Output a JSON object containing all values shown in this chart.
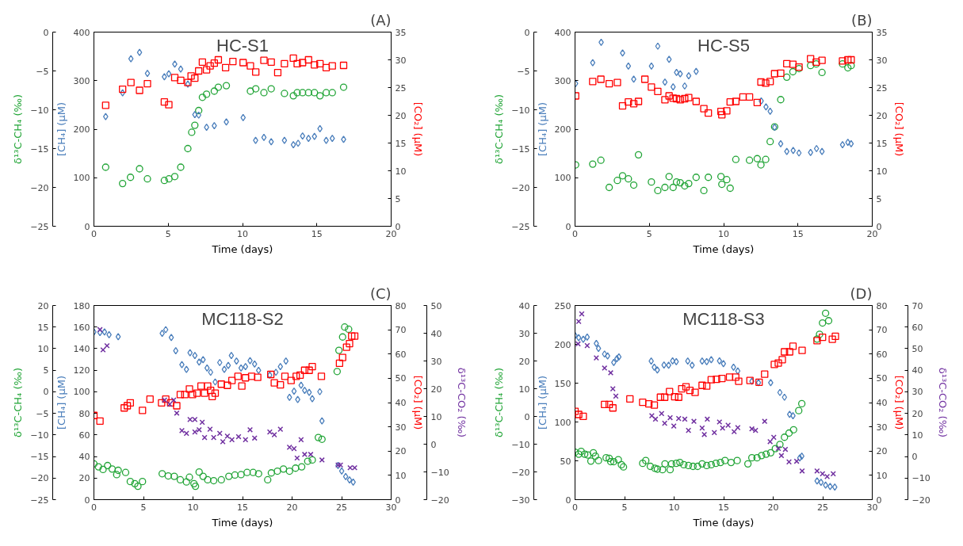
{
  "chart_data": [
    {
      "type": "scatter",
      "title": "(A)",
      "annotations": [
        "HC-S1"
      ],
      "xlabel": "Time (days)",
      "ylabel": "[CH₄] (μM)",
      "y2label": "[CO₂] (μM)",
      "y3label": "δ¹³C-CH₄ (‰)",
      "xlim": [
        0,
        20
      ],
      "xticks": [
        0,
        5,
        10,
        15,
        20
      ],
      "ylim": [
        0,
        400
      ],
      "yticks": [
        0,
        100,
        200,
        300,
        400
      ],
      "y2lim": [
        0,
        35
      ],
      "y2ticks": [
        0,
        5,
        10,
        15,
        20,
        25,
        30,
        35
      ],
      "y3lim": [
        -25,
        0
      ],
      "y3ticks": [
        -25,
        -20,
        -15,
        -10,
        -5,
        0
      ],
      "grid": false,
      "series": [
        {
          "axis": "y3",
          "color": "#22a537",
          "marker": "circle",
          "x": [
            0.79,
            1.93,
            2.46,
            3.07,
            3.6,
            4.74,
            5.05,
            5.44,
            5.84,
            6.32,
            6.58,
            6.79,
            7.05,
            7.3,
            7.58,
            8.1,
            8.37,
            8.91,
            10.53,
            10.89,
            11.44,
            11.93,
            12.82,
            13.42,
            13.68,
            14.04,
            14.44,
            14.84,
            15.21,
            15.63,
            16.04,
            16.8
          ],
          "values": [
            -17.4,
            -19.5,
            -18.7,
            -17.6,
            -18.9,
            -19.1,
            -18.9,
            -18.6,
            -17.4,
            -15.0,
            -12.9,
            -12.0,
            -10.1,
            -8.4,
            -8.0,
            -7.6,
            -7.1,
            -6.9,
            -7.6,
            -7.3,
            -7.8,
            -7.3,
            -7.9,
            -8.2,
            -7.8,
            -7.8,
            -7.8,
            -7.8,
            -8.2,
            -7.8,
            -7.8,
            -7.1
          ]
        },
        {
          "axis": "y",
          "color": "#4a7ebb",
          "marker": "diamond",
          "x": [
            0.79,
            1.93,
            2.49,
            3.07,
            3.6,
            4.74,
            5.04,
            5.44,
            5.84,
            6.32,
            6.79,
            7.05,
            7.58,
            8.1,
            8.91,
            10.04,
            10.88,
            11.44,
            11.93,
            12.82,
            13.42,
            13.74,
            14.04,
            14.44,
            14.84,
            15.21,
            15.63,
            16.04,
            16.8
          ],
          "values": [
            226,
            275,
            345,
            358,
            315,
            308,
            314,
            334,
            324,
            293,
            230,
            229,
            204,
            207,
            215,
            224,
            177,
            183,
            174,
            177,
            168,
            171,
            186,
            181,
            185,
            201,
            177,
            181,
            179
          ]
        },
        {
          "axis": "y2",
          "color": "#ff0000",
          "marker": "square",
          "x": [
            0.79,
            1.93,
            2.49,
            3.07,
            3.6,
            4.74,
            5.04,
            5.44,
            5.84,
            6.32,
            6.54,
            6.79,
            7.05,
            7.3,
            7.58,
            7.82,
            8.1,
            8.37,
            8.86,
            9.35,
            10.04,
            10.53,
            10.89,
            11.44,
            11.93,
            12.37,
            12.82,
            13.42,
            13.68,
            14.04,
            14.44,
            14.84,
            15.21,
            15.63,
            16.04,
            16.8
          ],
          "values": [
            21.8,
            24.7,
            25.9,
            24.5,
            25.7,
            22.4,
            21.9,
            26.8,
            26.3,
            25.9,
            27.1,
            26.7,
            28.0,
            29.6,
            28.2,
            28.9,
            29.4,
            30.0,
            28.6,
            29.7,
            29.5,
            28.9,
            27.8,
            29.9,
            29.6,
            27.7,
            29.3,
            30.3,
            29.3,
            29.5,
            30.0,
            29.1,
            29.3,
            28.6,
            28.9,
            29.0
          ]
        }
      ]
    },
    {
      "type": "scatter",
      "title": "(B)",
      "annotations": [
        "HC-S5"
      ],
      "xlabel": "Time (days)",
      "ylabel": "[CH₄] (μM)",
      "y2label": "[CO₂] (μM)",
      "y3label": "δ¹³C-CH₄ (‰)",
      "xlim": [
        0,
        20
      ],
      "xticks": [
        0,
        5,
        10,
        15,
        20
      ],
      "ylim": [
        0,
        400
      ],
      "yticks": [
        0,
        100,
        200,
        300,
        400
      ],
      "y2lim": [
        0,
        35
      ],
      "y2ticks": [
        0,
        5,
        10,
        15,
        20,
        25,
        30,
        35
      ],
      "y3lim": [
        -25,
        0
      ],
      "y3ticks": [
        -25,
        -20,
        -15,
        -10,
        -5,
        0
      ],
      "grid": false,
      "series": [
        {
          "axis": "y3",
          "color": "#22a537",
          "marker": "circle",
          "x": [
            0.04,
            1.19,
            1.74,
            2.3,
            2.85,
            3.2,
            3.59,
            3.95,
            4.27,
            5.14,
            5.57,
            6.05,
            6.33,
            6.6,
            6.83,
            7.08,
            7.38,
            7.65,
            8.15,
            8.67,
            8.97,
            9.82,
            9.88,
            10.21,
            10.44,
            10.82,
            11.74,
            12.26,
            12.51,
            12.83,
            13.13,
            13.43,
            13.84,
            14.25,
            14.66,
            15.07,
            15.85,
            16.23,
            16.62,
            18.0,
            18.36,
            18.58
          ],
          "values": [
            -17.1,
            -17.0,
            -16.5,
            -20.0,
            -19.1,
            -18.5,
            -18.9,
            -19.7,
            -15.8,
            -19.3,
            -20.4,
            -20.0,
            -18.6,
            -20.0,
            -19.3,
            -19.4,
            -19.8,
            -19.5,
            -18.7,
            -20.4,
            -18.7,
            -18.6,
            -19.6,
            -19.0,
            -20.1,
            -16.4,
            -16.5,
            -16.3,
            -17.1,
            -16.4,
            -14.1,
            -12.2,
            -8.7,
            -5.8,
            -5.1,
            -4.7,
            -4.3,
            -4.1,
            -5.2,
            -4.1,
            -4.6,
            -4.3
          ]
        },
        {
          "axis": "y",
          "color": "#4a7ebb",
          "marker": "diamond",
          "x": [
            0.04,
            1.19,
            1.76,
            3.2,
            3.59,
            3.95,
            5.14,
            5.57,
            6.05,
            6.33,
            6.6,
            6.83,
            7.08,
            7.38,
            7.65,
            8.15,
            12.53,
            12.85,
            13.13,
            13.43,
            13.84,
            14.25,
            14.68,
            15.07,
            15.85,
            16.25,
            16.62,
            18.0,
            18.36,
            18.58
          ],
          "values": [
            294,
            337,
            379,
            357,
            330,
            303,
            330,
            371,
            297,
            344,
            287,
            317,
            314,
            289,
            310,
            319,
            258,
            246,
            237,
            204,
            170,
            154,
            156,
            151,
            152,
            160,
            154,
            168,
            173,
            170
          ]
        },
        {
          "axis": "y2",
          "color": "#ff0000",
          "marker": "square",
          "x": [
            0.04,
            1.19,
            1.74,
            2.3,
            2.85,
            3.2,
            3.59,
            3.95,
            4.27,
            4.7,
            5.14,
            5.57,
            6.05,
            6.33,
            6.6,
            6.83,
            7.08,
            7.38,
            7.65,
            8.15,
            8.67,
            8.97,
            9.82,
            9.88,
            10.21,
            10.44,
            10.82,
            11.3,
            11.74,
            12.26,
            12.51,
            12.83,
            13.13,
            13.43,
            13.84,
            14.25,
            14.66,
            15.07,
            15.85,
            16.23,
            16.62,
            18.0,
            18.36,
            18.58
          ],
          "values": [
            23.5,
            26.1,
            26.5,
            25.7,
            25.9,
            21.7,
            22.4,
            22.1,
            22.5,
            26.5,
            25.1,
            24.3,
            22.8,
            23.5,
            23.1,
            23.0,
            22.8,
            23.0,
            23.2,
            22.5,
            21.2,
            20.4,
            20.7,
            20.1,
            20.8,
            22.4,
            22.5,
            23.3,
            23.3,
            22.3,
            26.0,
            25.8,
            26.1,
            27.5,
            27.6,
            29.3,
            29.2,
            28.7,
            30.2,
            29.6,
            29.9,
            29.8,
            30.0,
            30.0
          ]
        }
      ]
    },
    {
      "type": "scatter",
      "title": "(C)",
      "annotations": [
        "MC118-S2"
      ],
      "xlabel": "Time (days)",
      "ylabel": "[CH₄] (μM)",
      "y3label": "δ¹³C-CH₄ (‰)",
      "xlim": [
        0,
        30
      ],
      "xticks": [
        0,
        5,
        10,
        15,
        20,
        25,
        30
      ],
      "ylim": [
        0,
        180
      ],
      "yticks": [
        0,
        20,
        40,
        60,
        80,
        100,
        120,
        140,
        160,
        180
      ],
      "y3lim": [
        -25,
        20
      ],
      "y3ticks": [
        -25,
        -20,
        -15,
        -10,
        -5,
        0,
        5,
        10,
        15,
        20
      ],
      "grid": false,
      "series": [
        {
          "axis": "y3",
          "color": "#22a537",
          "marker": "circle",
          "x": [
            0,
            0.46,
            0.92,
            1.38,
            1.84,
            2.3,
            2.45,
            3.2,
            3.67,
            4.13,
            4.44,
            4.9,
            6.89,
            7.5,
            8.11,
            8.72,
            9.34,
            9.64,
            10.1,
            10.25,
            10.62,
            11.02,
            11.48,
            12.09,
            12.86,
            13.62,
            14.23,
            14.85,
            15.46,
            16.07,
            16.62,
            17.54,
            17.91,
            18.52,
            19.13,
            19.74,
            20.35,
            20.97,
            21.58,
            22.04,
            22.65,
            23.02,
            24.55,
            24.73,
            25.1,
            25.31,
            25.71
          ],
          "values": [
            -16.7,
            -17.4,
            -18.0,
            -17.1,
            -17.9,
            -19.2,
            -18.2,
            -18.7,
            -20.8,
            -21.3,
            -21.9,
            -20.8,
            -19.0,
            -19.5,
            -19.6,
            -20.4,
            -20.9,
            -19.8,
            -21.3,
            -21.9,
            -18.6,
            -19.6,
            -20.4,
            -20.6,
            -20.4,
            -19.6,
            -19.3,
            -19.2,
            -18.7,
            -18.7,
            -19.0,
            -20.4,
            -18.8,
            -18.4,
            -17.9,
            -18.4,
            -17.7,
            -17.4,
            -16.1,
            -15.8,
            -10.6,
            -11.0,
            4.7,
            9.6,
            12.7,
            15.0,
            14.5
          ]
        },
        {
          "axis": "y",
          "color": "#4a7ebb",
          "marker": "diamond",
          "x": [
            0,
            0.61,
            1.07,
            1.53,
            2.45,
            6.89,
            7.25,
            7.81,
            8.26,
            8.88,
            9.34,
            9.7,
            10.19,
            10.62,
            11.02,
            11.42,
            11.78,
            12.24,
            12.7,
            13.16,
            13.56,
            13.87,
            14.39,
            14.85,
            15.3,
            15.76,
            16.22,
            16.62,
            17.75,
            18.37,
            18.82,
            19.38,
            19.74,
            20.2,
            20.57,
            20.91,
            21.27,
            21.73,
            22.04,
            22.8,
            23.02,
            24.64,
            25.01,
            25.41,
            25.8,
            26.17
          ],
          "values": [
            155.5,
            155.0,
            155.5,
            152.9,
            151.1,
            154.2,
            157.6,
            150.3,
            138.0,
            125.1,
            120.7,
            136.2,
            133.6,
            127.6,
            129.7,
            122.0,
            118.1,
            109.1,
            127.1,
            120.7,
            124.5,
            133.6,
            128.4,
            122.0,
            123.3,
            128.9,
            125.8,
            119.9,
            115.5,
            118.1,
            123.3,
            128.4,
            94.9,
            100.6,
            92.8,
            106.0,
            101.3,
            99.5,
            93.6,
            100.1,
            73.0,
            31.7,
            26.6,
            21.4,
            18.3,
            16.2
          ]
        }
      ]
    },
    {
      "type": "scatter",
      "ylabel": "[CO₂] (μM)",
      "y2label": "δ¹³C-CO₂ (‰)",
      "xlim": [
        0,
        30
      ],
      "ylim": [
        0,
        80
      ],
      "yticks": [
        0,
        10,
        20,
        30,
        40,
        50,
        60,
        70,
        80
      ],
      "y2lim": [
        -20,
        50
      ],
      "y2ticks": [
        -20,
        -10,
        0,
        10,
        20,
        30,
        40,
        50
      ],
      "tick_labels": "y",
      "series": [
        {
          "color": "#ff0000",
          "marker": "square",
          "x": [
            0,
            0.61,
            3.06,
            3.37,
            3.67,
            4.9,
            5.66,
            6.83,
            7.25,
            7.74,
            8.36,
            8.72,
            9.18,
            9.64,
            9.95,
            10.41,
            10.81,
            11.17,
            11.48,
            11.78,
            11.94,
            12.24,
            12.86,
            13.47,
            13.93,
            14.54,
            14.93,
            15.3,
            15.92,
            16.53,
            17.85,
            18.21,
            18.82,
            19.28,
            19.9,
            20.42,
            20.81,
            21.27,
            21.73,
            22.04,
            22.96,
            24.79,
            25.1,
            25.5,
            25.8,
            26.02,
            26.32
          ],
          "values": [
            34.7,
            32.4,
            37.8,
            38.7,
            39.9,
            36.8,
            41.4,
            39.9,
            41.4,
            39.9,
            38.7,
            43.3,
            43.3,
            45.6,
            43.3,
            43.9,
            46.8,
            43.9,
            46.8,
            45.0,
            42.5,
            43.9,
            47.6,
            47.1,
            49.1,
            50.8,
            46.8,
            50.2,
            50.8,
            50.4,
            51.6,
            48.1,
            47.3,
            50.8,
            49.1,
            50.8,
            51.3,
            53.3,
            53.3,
            54.8,
            50.8,
            56.2,
            58.6,
            62.8,
            64.3,
            67.4,
            67.4
          ]
        },
        {
          "axis": "y2",
          "color": "#7030a0",
          "marker": "cross",
          "x": [
            0.61,
            0.92,
            1.32,
            7.13,
            7.65,
            8.05,
            8.36,
            8.88,
            9.34,
            9.7,
            10.19,
            10.19,
            10.62,
            10.93,
            11.17,
            11.72,
            12.09,
            12.7,
            13.01,
            13.47,
            13.93,
            14.6,
            15.3,
            15.76,
            16.22,
            17.75,
            18.21,
            18.82,
            19.74,
            20.2,
            20.51,
            20.91,
            21.27,
            21.88,
            23.02,
            24.64,
            24.89,
            25.86,
            26.32
          ],
          "values": [
            41.3,
            34.0,
            35.5,
            15.9,
            14.4,
            15.9,
            11.2,
            4.9,
            3.9,
            8.9,
            8.9,
            4.4,
            5.2,
            7.9,
            2.4,
            5.4,
            2.4,
            3.9,
            0.9,
            2.9,
            1.6,
            2.7,
            1.6,
            5.2,
            2.2,
            4.4,
            3.4,
            5.4,
            -1.1,
            -1.6,
            -5.0,
            1.6,
            -3.7,
            -3.7,
            -5.7,
            -7.5,
            -7.5,
            -8.5,
            -8.5
          ]
        }
      ]
    },
    {
      "type": "scatter",
      "title": "(D)",
      "annotations": [
        "MC118-S3"
      ],
      "xlabel": "Time (days)",
      "ylabel": "[CH₄] (μM)",
      "y3label": "δ¹³C-CH₄ (‰)",
      "xlim": [
        0,
        30
      ],
      "xticks": [
        0,
        5,
        10,
        15,
        20,
        25,
        30
      ],
      "ylim": [
        0,
        250
      ],
      "yticks": [
        0,
        50,
        100,
        150,
        200,
        250
      ],
      "y3lim": [
        -30,
        40
      ],
      "y3ticks": [
        -30,
        -20,
        -10,
        0,
        10,
        20,
        30,
        40
      ],
      "grid": false,
      "series": [
        {
          "axis": "y3",
          "color": "#22a537",
          "marker": "circle",
          "x": [
            0,
            0.37,
            0.62,
            0.98,
            1.29,
            1.6,
            1.85,
            2.06,
            2.37,
            3.14,
            3.45,
            3.6,
            3.91,
            4.37,
            4.68,
            4.89,
            6.83,
            7.14,
            7.6,
            8.06,
            8.31,
            8.83,
            9.08,
            9.6,
            9.75,
            10.22,
            10.58,
            10.98,
            11.45,
            11.91,
            12.37,
            12.83,
            13.29,
            13.75,
            14.22,
            14.68,
            15.14,
            15.75,
            16.37,
            17.45,
            17.85,
            18.37,
            18.83,
            19.29,
            19.75,
            20.22,
            20.68,
            21.14,
            21.6,
            22.06,
            22.58,
            22.89,
            24.43,
            24.68,
            24.98,
            25.29,
            25.6
          ],
          "values": [
            -12.9,
            -13.6,
            -12.6,
            -13.6,
            -13.9,
            -16.1,
            -13.1,
            -14.3,
            -15.9,
            -14.9,
            -15.1,
            -16.3,
            -16.3,
            -15.6,
            -17.4,
            -18.2,
            -16.9,
            -15.9,
            -18.0,
            -18.7,
            -19.0,
            -19.2,
            -17.1,
            -19.2,
            -17.1,
            -16.9,
            -16.6,
            -17.4,
            -17.7,
            -18.0,
            -18.0,
            -17.1,
            -17.7,
            -17.4,
            -16.9,
            -16.6,
            -15.9,
            -16.6,
            -15.9,
            -17.1,
            -14.9,
            -14.9,
            -14.1,
            -13.6,
            -13.1,
            -11.6,
            -10.1,
            -7.5,
            -6.0,
            -4.8,
            2.1,
            4.6,
            27.9,
            29.6,
            33.7,
            37.2,
            34.5
          ]
        },
        {
          "axis": "y",
          "color": "#4a7ebb",
          "marker": "diamond",
          "x": [
            0,
            0.37,
            0.83,
            1.23,
            2.15,
            2.37,
            2.98,
            3.29,
            3.91,
            4.22,
            4.43,
            7.69,
            8.0,
            8.31,
            8.98,
            9.45,
            9.85,
            10.22,
            11.38,
            11.82,
            12.83,
            13.29,
            13.75,
            14.58,
            14.98,
            16.0,
            16.43,
            17.85,
            18.52,
            19.75,
            20.68,
            21.14,
            21.66,
            22.0,
            22.68,
            22.89,
            24.43,
            24.83,
            25.29,
            25.75,
            26.22
          ],
          "values": [
            211.3,
            208.5,
            206.6,
            209.2,
            201.2,
            194.7,
            187.5,
            185.0,
            176.7,
            181.4,
            183.9,
            178.5,
            170.5,
            166.9,
            173.4,
            173.0,
            178.8,
            177.7,
            178.5,
            173.0,
            178.5,
            177.7,
            180.3,
            178.8,
            175.2,
            170.5,
            165.8,
            152.5,
            150.6,
            150.6,
            138.0,
            131.9,
            109.8,
            108.0,
            53.8,
            56.0,
            24.2,
            22.4,
            18.8,
            17.0,
            16.3
          ]
        }
      ]
    },
    {
      "type": "scatter",
      "ylabel": "[CO₂] (μM)",
      "y2label": "δ¹³C-CO₂ (‰)",
      "xlim": [
        0,
        30
      ],
      "ylim": [
        0,
        80
      ],
      "yticks": [
        0,
        10,
        20,
        30,
        40,
        50,
        60,
        70,
        80
      ],
      "y2lim": [
        -20,
        70
      ],
      "y2ticks": [
        -20,
        -10,
        0,
        10,
        20,
        30,
        40,
        50,
        60,
        70
      ],
      "tick_labels": "y",
      "series": [
        {
          "color": "#ff0000",
          "marker": "square",
          "x": [
            0,
            0.37,
            0.83,
            2.98,
            3.45,
            3.82,
            5.54,
            6.83,
            7.45,
            8.0,
            8.62,
            9.05,
            9.54,
            10.06,
            10.46,
            10.77,
            11.2,
            11.6,
            12.12,
            12.83,
            13.29,
            13.75,
            14.28,
            14.83,
            15.6,
            16.22,
            16.52,
            17.66,
            18.58,
            19.14,
            20.12,
            20.52,
            20.92,
            21.14,
            21.66,
            22.0,
            22.92,
            24.43,
            24.98,
            25.97,
            26.28
          ],
          "values": [
            36.4,
            35.1,
            34.3,
            39.2,
            39.2,
            37.8,
            41.5,
            40.1,
            39.5,
            39.0,
            42.2,
            42.2,
            44.5,
            42.4,
            42.2,
            45.7,
            46.5,
            45.0,
            44.2,
            47.1,
            46.8,
            49.4,
            49.6,
            49.9,
            50.5,
            50.5,
            48.8,
            49.1,
            48.4,
            51.7,
            55.7,
            56.3,
            57.7,
            60.9,
            60.9,
            63.2,
            61.5,
            65.5,
            66.9,
            66.1,
            67.3
          ]
        },
        {
          "axis": "y2",
          "color": "#7030a0",
          "marker": "cross",
          "x": [
            0.31,
            0.37,
            0.68,
            1.23,
            2.15,
            2.98,
            3.6,
            3.82,
            4.12,
            7.75,
            8.12,
            8.74,
            9.05,
            9.6,
            9.97,
            10.46,
            11.08,
            11.45,
            12.0,
            12.83,
            13.05,
            13.35,
            14.06,
            14.58,
            14.89,
            15.45,
            16.06,
            16.43,
            17.85,
            18.22,
            19.14,
            19.69,
            20.06,
            20.52,
            20.83,
            21.23,
            21.6,
            22.37,
            22.92,
            24.43,
            24.98,
            25.45,
            26.06
          ],
          "values": [
            52.2,
            62.6,
            66.1,
            51.4,
            45.7,
            41.0,
            38.8,
            31.4,
            28.0,
            18.9,
            17.3,
            19.9,
            15.4,
            18.0,
            14.1,
            17.6,
            17.3,
            12.1,
            16.3,
            13.2,
            10.2,
            17.3,
            11.1,
            16.0,
            13.2,
            14.5,
            11.5,
            13.4,
            12.8,
            12.1,
            16.3,
            6.9,
            8.9,
            3.7,
            0.4,
            3.3,
            -2.5,
            -2.2,
            -6.7,
            -6.7,
            -8.0,
            -9.3,
            -8.0
          ]
        }
      ]
    }
  ]
}
